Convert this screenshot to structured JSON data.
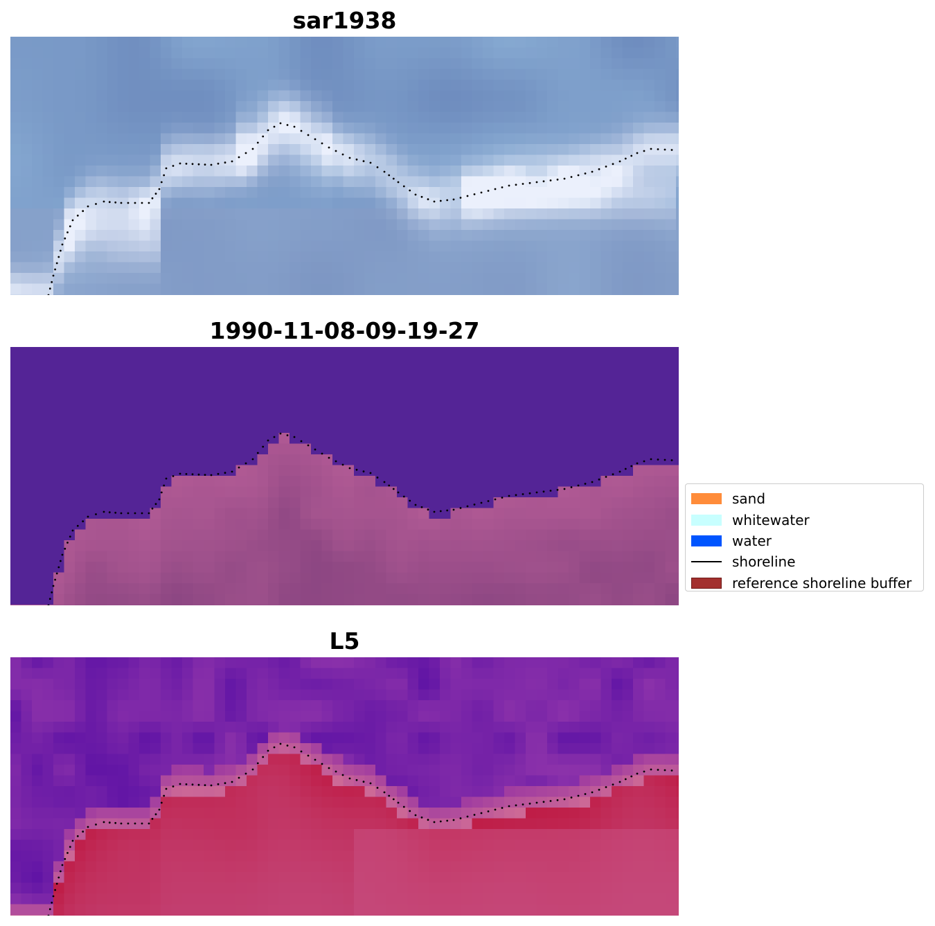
{
  "panels": [
    {
      "title": "sar1938",
      "variant": "sar"
    },
    {
      "title": "1990-11-08-09-19-27",
      "variant": "classified"
    },
    {
      "title": "L5",
      "variant": "l5"
    }
  ],
  "legend": {
    "items": [
      {
        "label": "sand",
        "color": "#ff8c3a",
        "kind": "patch"
      },
      {
        "label": "whitewater",
        "color": "#c8ffff",
        "kind": "patch"
      },
      {
        "label": "water",
        "color": "#0055ff",
        "kind": "patch"
      },
      {
        "label": "shoreline",
        "color": "#000000",
        "kind": "line"
      },
      {
        "label": "reference shoreline buffer",
        "color": "#a3302e",
        "kind": "patch"
      }
    ]
  }
}
